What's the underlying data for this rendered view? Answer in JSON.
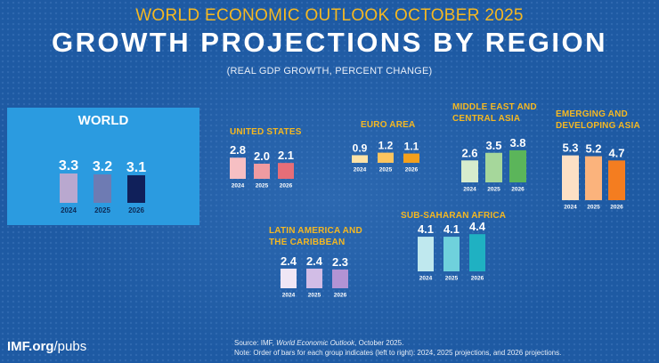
{
  "header": {
    "supertitle": "WORLD ECONOMIC OUTLOOK OCTOBER 2025",
    "title": "GROWTH PROJECTIONS BY REGION",
    "subtitle": "(REAL GDP GROWTH, PERCENT CHANGE)"
  },
  "chart_data": {
    "type": "bar",
    "title": "GROWTH PROJECTIONS BY REGION",
    "subtitle": "(REAL GDP GROWTH, PERCENT CHANGE)",
    "categories": [
      "2024",
      "2025",
      "2026"
    ],
    "groups": [
      {
        "id": "world",
        "name": "WORLD",
        "values": [
          3.3,
          3.2,
          3.1
        ],
        "labels": [
          "3.3",
          "3.2",
          "3.1"
        ],
        "colors": [
          "#b9a8cf",
          "#6e7bb3",
          "#10205a"
        ]
      },
      {
        "id": "us",
        "name": "UNITED STATES",
        "values": [
          2.8,
          2.0,
          2.1
        ],
        "labels": [
          "2.8",
          "2.0",
          "2.1"
        ],
        "colors": [
          "#f6bfc3",
          "#ef9ba1",
          "#e66e78"
        ]
      },
      {
        "id": "euro",
        "name": "EURO AREA",
        "values": [
          0.9,
          1.2,
          1.1
        ],
        "labels": [
          "0.9",
          "1.2",
          "1.1"
        ],
        "colors": [
          "#fde2a6",
          "#fbc45f",
          "#f4a01d"
        ]
      },
      {
        "id": "meca",
        "name": "MIDDLE EAST AND CENTRAL ASIA",
        "values": [
          2.6,
          3.5,
          3.8
        ],
        "labels": [
          "2.6",
          "3.5",
          "3.8"
        ],
        "colors": [
          "#d6eccd",
          "#a6d79b",
          "#5bb55a"
        ]
      },
      {
        "id": "emde",
        "name": "EMERGING AND DEVELOPING ASIA",
        "values": [
          5.3,
          5.2,
          4.7
        ],
        "labels": [
          "5.3",
          "5.2",
          "4.7"
        ],
        "colors": [
          "#fde0c5",
          "#fbb37c",
          "#f47d20"
        ]
      },
      {
        "id": "latam",
        "name": "LATIN AMERICA AND THE CARIBBEAN",
        "values": [
          2.4,
          2.4,
          2.3
        ],
        "labels": [
          "2.4",
          "2.4",
          "2.3"
        ],
        "colors": [
          "#efe6f5",
          "#d2bde6",
          "#b293d4"
        ]
      },
      {
        "id": "ssa",
        "name": "SUB-SAHARAN AFRICA",
        "values": [
          4.1,
          4.1,
          4.4
        ],
        "labels": [
          "4.1",
          "4.1",
          "4.4"
        ],
        "colors": [
          "#bfe8ee",
          "#6fd1dc",
          "#1fb1c2"
        ]
      }
    ]
  },
  "footer": {
    "source_prefix": "Source:  IMF, ",
    "source_title": "World Economic Outlook",
    "source_suffix": ", October 2025.",
    "note": "Note:  Order of bars for each group indicates (left to right): 2024, 2025 projections, and 2026 projections.",
    "brand_bold": "IMF.org",
    "brand_rest": "/pubs"
  }
}
